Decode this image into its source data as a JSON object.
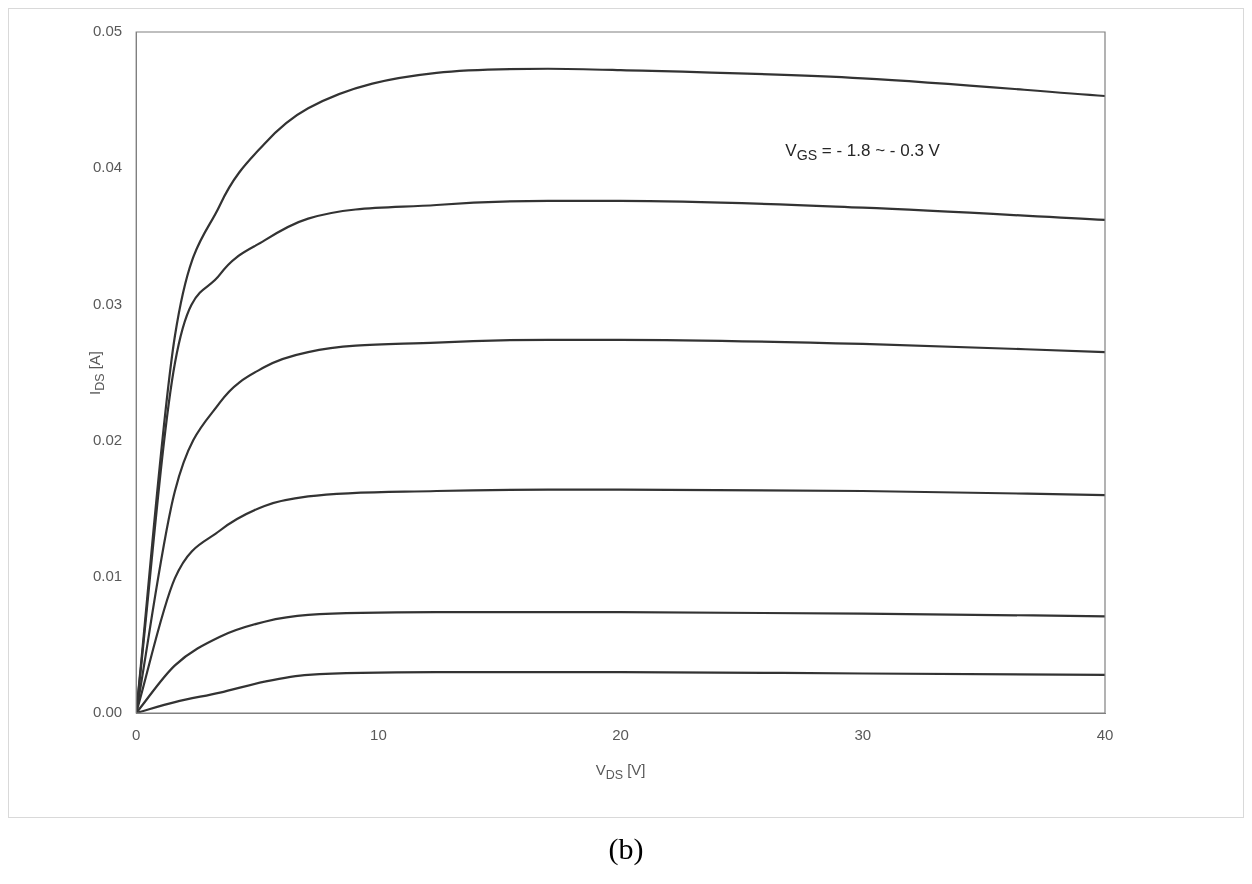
{
  "chart_data": {
    "type": "line",
    "xlabel": "V$_{DS}$ [V]",
    "ylabel": "I$_{DS}$ [A]",
    "annotations": [
      "V$_{GS}$ = - 1.8 ~ - 0.3 V",
      "(b)"
    ],
    "xlim": [
      0,
      40
    ],
    "xticks": [
      0,
      10,
      20,
      30,
      40
    ],
    "ylim": [
      0,
      0.05
    ],
    "yticks": [
      {
        "value": 0,
        "label": "0.00"
      },
      {
        "value": 0.01,
        "label": "0.01"
      },
      {
        "value": 0.02,
        "label": "0.02"
      },
      {
        "value": 0.03,
        "label": "0.03"
      },
      {
        "value": 0.04,
        "label": "0.04"
      },
      {
        "value": 0.05,
        "label": "0.05"
      }
    ],
    "grid": false,
    "legend": false,
    "marker": "none",
    "line_style": "solid",
    "x": [
      0,
      1.6,
      3.46,
      5.3,
      7.1,
      12.4,
      17,
      20,
      30,
      40
    ],
    "series": [
      {
        "color": "#333333",
        "values": [
          0,
          0.0277,
          0.0373,
          0.0418,
          0.0444,
          0.047,
          0.0473,
          0.0472,
          0.0466,
          0.0453
        ]
      },
      {
        "color": "#333333",
        "values": [
          0,
          0.0257,
          0.0322,
          0.0347,
          0.0363,
          0.0373,
          0.0376,
          0.0376,
          0.0371,
          0.0362
        ]
      },
      {
        "color": "#333333",
        "values": [
          0,
          0.0163,
          0.0228,
          0.0254,
          0.0265,
          0.0272,
          0.0274,
          0.0274,
          0.0271,
          0.0265
        ]
      },
      {
        "color": "#333333",
        "values": [
          0,
          0.0099,
          0.0134,
          0.0152,
          0.0159,
          0.0163,
          0.0164,
          0.0164,
          0.0163,
          0.016
        ]
      },
      {
        "color": "#333333",
        "values": [
          0,
          0.0035,
          0.0056,
          0.0067,
          0.0072,
          0.0074,
          0.0074,
          0.0074,
          0.0073,
          0.0071
        ]
      },
      {
        "color": "#333333",
        "values": [
          0,
          0.0008,
          0.0015,
          0.0023,
          0.0028,
          0.003,
          0.003,
          0.003,
          0.0029,
          0.0028
        ]
      }
    ]
  }
}
